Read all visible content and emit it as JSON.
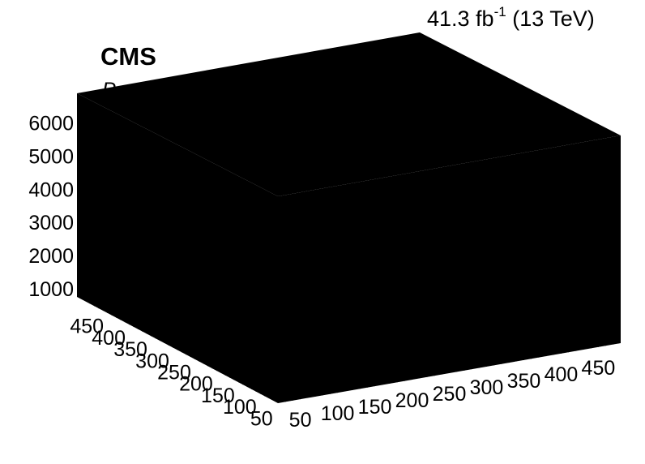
{
  "header": {
    "experiment": "CMS",
    "sublabel": "P",
    "lumi_value": "41.3 fb",
    "lumi_exp": "-1",
    "lumi_energy": " (13 TeV)"
  },
  "chart_data": {
    "type": "heatmap",
    "title": "",
    "z_axis": {
      "ticks": [
        "1000",
        "2000",
        "3000",
        "4000",
        "5000",
        "6000"
      ],
      "range": [
        750,
        6900
      ]
    },
    "y_axis": {
      "ticks": [
        "450",
        "400",
        "350",
        "300",
        "250",
        "200",
        "150",
        "100",
        "50"
      ],
      "range": [
        20,
        480
      ]
    },
    "x_axis": {
      "ticks": [
        "50",
        "100",
        "150",
        "200",
        "250",
        "300",
        "350",
        "400",
        "450"
      ],
      "range": [
        20,
        480
      ]
    },
    "fill_color": "#000000",
    "grid": false,
    "values": "solid black box; individual cell values not readable"
  }
}
